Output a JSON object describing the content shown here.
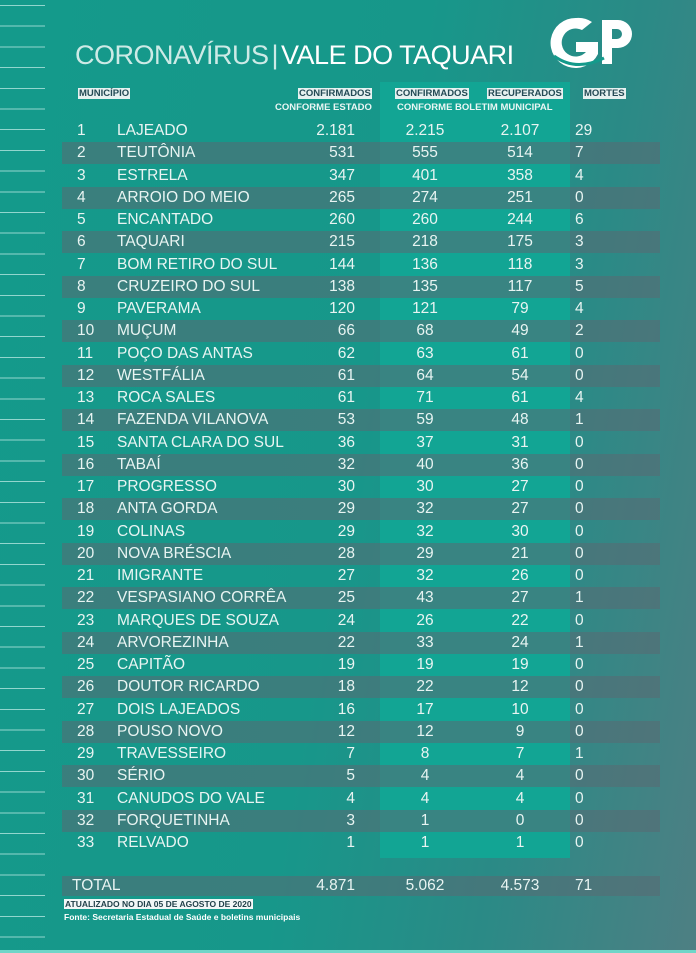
{
  "title": {
    "part1": "CORONAVÍRUS",
    "separator": "|",
    "part2": "VALE DO TAQUARI"
  },
  "logo": "GP",
  "colors": {
    "background": "#149a8b",
    "highlight_column": "#12a594",
    "alt_row": "#5a6973"
  },
  "headers": {
    "municipio": "MUNICÍPIO",
    "confirmados_estado": "CONFIRMADOS",
    "conforme_estado": "CONFORME ESTADO",
    "confirmados_boletim": "CONFIRMADOS",
    "recuperados": "RECUPERADOS",
    "conforme_boletim": "CONFORME BOLETIM MUNICIPAL",
    "mortes": "MORTES"
  },
  "rows": [
    [
      "1",
      "LAJEADO",
      "2.181",
      "2.215",
      "2.107",
      "29"
    ],
    [
      "2",
      "TEUTÔNIA",
      "531",
      "555",
      "514",
      "7"
    ],
    [
      "3",
      "ESTRELA",
      "347",
      "401",
      "358",
      "4"
    ],
    [
      "4",
      "ARROIO DO MEIO",
      "265",
      "274",
      "251",
      "0"
    ],
    [
      "5",
      "ENCANTADO",
      "260",
      "260",
      "244",
      "6"
    ],
    [
      "6",
      "TAQUARI",
      "215",
      "218",
      "175",
      "3"
    ],
    [
      "7",
      "BOM RETIRO DO SUL",
      "144",
      "136",
      "118",
      "3"
    ],
    [
      "8",
      "CRUZEIRO DO SUL",
      "138",
      "135",
      "117",
      "5"
    ],
    [
      "9",
      "PAVERAMA",
      "120",
      "121",
      "79",
      "4"
    ],
    [
      "10",
      "MUÇUM",
      "66",
      "68",
      "49",
      "2"
    ],
    [
      "11",
      "POÇO DAS ANTAS",
      "62",
      "63",
      "61",
      "0"
    ],
    [
      "12",
      "WESTFÁLIA",
      "61",
      "64",
      "54",
      "0"
    ],
    [
      "13",
      "ROCA SALES",
      "61",
      "71",
      "61",
      "4"
    ],
    [
      "14",
      "FAZENDA VILANOVA",
      "53",
      "59",
      "48",
      "1"
    ],
    [
      "15",
      "SANTA CLARA DO SUL",
      "36",
      "37",
      "31",
      "0"
    ],
    [
      "16",
      "TABAÍ",
      "32",
      "40",
      "36",
      "0"
    ],
    [
      "17",
      "PROGRESSO",
      "30",
      "30",
      "27",
      "0"
    ],
    [
      "18",
      "ANTA GORDA",
      "29",
      "32",
      "27",
      "0"
    ],
    [
      "19",
      "COLINAS",
      "29",
      "32",
      "30",
      "0"
    ],
    [
      "20",
      "NOVA BRÉSCIA",
      "28",
      "29",
      "21",
      "0"
    ],
    [
      "21",
      "IMIGRANTE",
      "27",
      "32",
      "26",
      "0"
    ],
    [
      "22",
      "VESPASIANO CORRÊA",
      "25",
      "43",
      "27",
      "1"
    ],
    [
      "23",
      "MARQUES DE SOUZA",
      "24",
      "26",
      "22",
      "0"
    ],
    [
      "24",
      "ARVOREZINHA",
      "22",
      "33",
      "24",
      "1"
    ],
    [
      "25",
      "CAPITÃO",
      "19",
      "19",
      "19",
      "0"
    ],
    [
      "26",
      "DOUTOR RICARDO",
      "18",
      "22",
      "12",
      "0"
    ],
    [
      "27",
      "DOIS LAJEADOS",
      "16",
      "17",
      "10",
      "0"
    ],
    [
      "28",
      "POUSO NOVO",
      "12",
      "12",
      "9",
      "0"
    ],
    [
      "29",
      "TRAVESSEIRO",
      "7",
      "8",
      "7",
      "1"
    ],
    [
      "30",
      "SÉRIO",
      "5",
      "4",
      "4",
      "0"
    ],
    [
      "31",
      "CANUDOS DO VALE",
      "4",
      "4",
      "4",
      "0"
    ],
    [
      "32",
      "FORQUETINHA",
      "3",
      "1",
      "0",
      "0"
    ],
    [
      "33",
      "RELVADO",
      "1",
      "1",
      "1",
      "0"
    ]
  ],
  "total": {
    "label": "TOTAL",
    "estado": "4.871",
    "boletim": "5.062",
    "recuperados": "4.573",
    "mortes": "71"
  },
  "footer": {
    "updated": "ATUALIZADO NO DIA 05 DE AGOSTO DE 2020",
    "source": "Fonte: Secretaria Estadual de Saúde e boletins municipais"
  }
}
